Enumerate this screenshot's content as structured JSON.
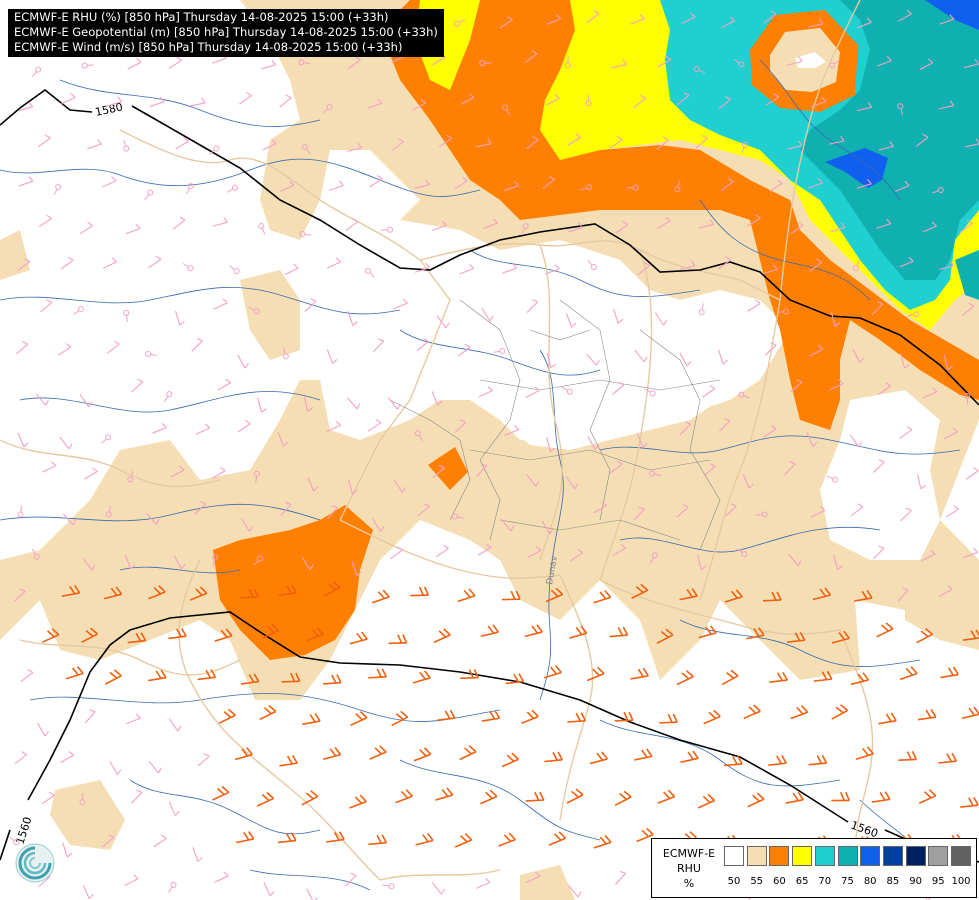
{
  "header": {
    "lines": [
      "ECMWF-E RHU (%) [850 hPa] Thursday 14-08-2025 15:00 (+33h)",
      "ECMWF-E Geopotential (m) [850 hPa] Thursday 14-08-2025 15:00 (+33h)",
      "ECMWF-E Wind (m/s) [850 hPa] Thursday 14-08-2025 15:00 (+33h)"
    ]
  },
  "legend": {
    "title_lines": [
      "ECMWF-E",
      "RHU",
      "%"
    ],
    "classes": [
      {
        "label": "50",
        "color": "#ffffff"
      },
      {
        "label": "55",
        "color": "#f5deb3"
      },
      {
        "label": "60",
        "color": "#ff8000"
      },
      {
        "label": "65",
        "color": "#ffff00"
      },
      {
        "label": "70",
        "color": "#20d0d0"
      },
      {
        "label": "75",
        "color": "#10b0b0"
      },
      {
        "label": "80",
        "color": "#1060f0"
      },
      {
        "label": "85",
        "color": "#0040a0"
      },
      {
        "label": "90",
        "color": "#002060"
      },
      {
        "label": "95",
        "color": "#a0a0a0"
      },
      {
        "label": "100",
        "color": "#606060"
      }
    ]
  },
  "contours": [
    {
      "label": "1580",
      "value": 1580
    },
    {
      "label": "1580",
      "value": 1580
    },
    {
      "label": "1560",
      "value": 1560
    },
    {
      "label": "1560",
      "value": 1560
    }
  ],
  "map_text": {
    "river_label": "Dunav"
  },
  "colors": {
    "wind_barb_normal": "#f4a0c8",
    "wind_barb_strong": "#f06010",
    "rivers": "#3868b0",
    "borders": "#e6c9a0",
    "internal_borders": "#888888",
    "contour": "#000000"
  },
  "logo": {
    "icon": "ecmwf-swirl-logo"
  }
}
